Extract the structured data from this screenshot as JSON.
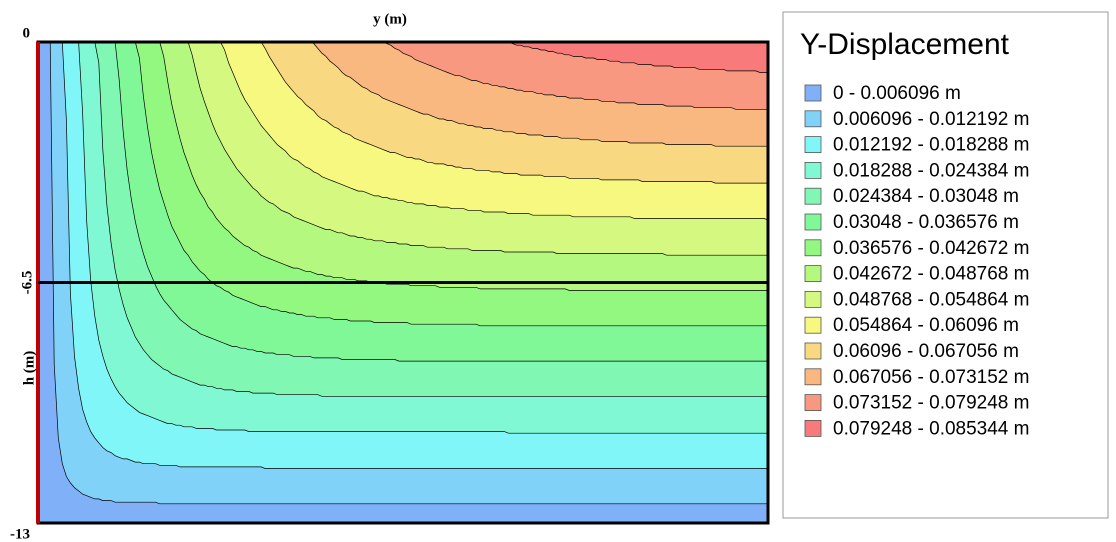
{
  "chart_data": {
    "type": "contour",
    "xlabel": "y (m)",
    "ylabel": "h (m)",
    "ylim": [
      -13,
      0
    ],
    "yticks": [
      0,
      -6.5,
      -13
    ],
    "hline": -6.5,
    "legend": {
      "title": "Y-Displacement",
      "items": [
        {
          "label": "0 - 0.006096 m",
          "color": "#80b0f8"
        },
        {
          "label": "0.006096 - 0.012192 m",
          "color": "#80d2f8"
        },
        {
          "label": "0.012192 - 0.018288 m",
          "color": "#80f6f8"
        },
        {
          "label": "0.018288 - 0.024384 m",
          "color": "#80f8d4"
        },
        {
          "label": "0.024384 - 0.03048 m",
          "color": "#80f8b4"
        },
        {
          "label": "0.03048 - 0.036576 m",
          "color": "#80f898"
        },
        {
          "label": "0.036576 - 0.042672 m",
          "color": "#92f880"
        },
        {
          "label": "0.042672 - 0.048768 m",
          "color": "#b4f880"
        },
        {
          "label": "0.048768 - 0.054864 m",
          "color": "#d4f880"
        },
        {
          "label": "0.054864 - 0.06096 m",
          "color": "#f6f880"
        },
        {
          "label": "0.06096 - 0.067056 m",
          "color": "#f8d880"
        },
        {
          "label": "0.067056 - 0.073152 m",
          "color": "#f8b880"
        },
        {
          "label": "0.073152 - 0.079248 m",
          "color": "#f89880"
        },
        {
          "label": "0.079248 - 0.085344 m",
          "color": "#f87a7a"
        }
      ]
    }
  }
}
